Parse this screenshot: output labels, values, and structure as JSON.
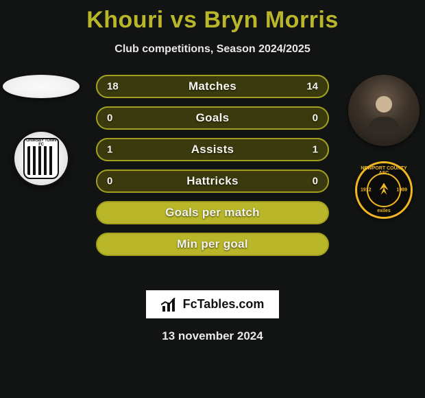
{
  "title": "Khouri vs Bryn Morris",
  "subtitle": "Club competitions, Season 2024/2025",
  "colors": {
    "accent_border": "#a3a01f",
    "accent_fill": "#b9b729",
    "accent_dark_fill": "#3a3a0e",
    "title_color": "#b9b729"
  },
  "left_player": {
    "name": "Khouri",
    "club_label": "GRIMSBY TOWN FC"
  },
  "right_player": {
    "name": "Bryn Morris",
    "club_label_top": "NEWPORT COUNTY AFC",
    "club_year_left": "1912",
    "club_year_right": "1989",
    "club_motto": "exiles"
  },
  "rows": [
    {
      "label": "Matches",
      "left": "18",
      "right": "14",
      "left_pct": 56,
      "right_pct": 44,
      "style": "split"
    },
    {
      "label": "Goals",
      "left": "0",
      "right": "0",
      "left_pct": 0,
      "right_pct": 0,
      "style": "empty"
    },
    {
      "label": "Assists",
      "left": "1",
      "right": "1",
      "left_pct": 50,
      "right_pct": 50,
      "style": "split"
    },
    {
      "label": "Hattricks",
      "left": "0",
      "right": "0",
      "left_pct": 0,
      "right_pct": 0,
      "style": "empty"
    },
    {
      "label": "Goals per match",
      "left": "",
      "right": "",
      "left_pct": 0,
      "right_pct": 0,
      "style": "full"
    },
    {
      "label": "Min per goal",
      "left": "",
      "right": "",
      "left_pct": 0,
      "right_pct": 0,
      "style": "full"
    }
  ],
  "brand": "FcTables.com",
  "date": "13 november 2024"
}
